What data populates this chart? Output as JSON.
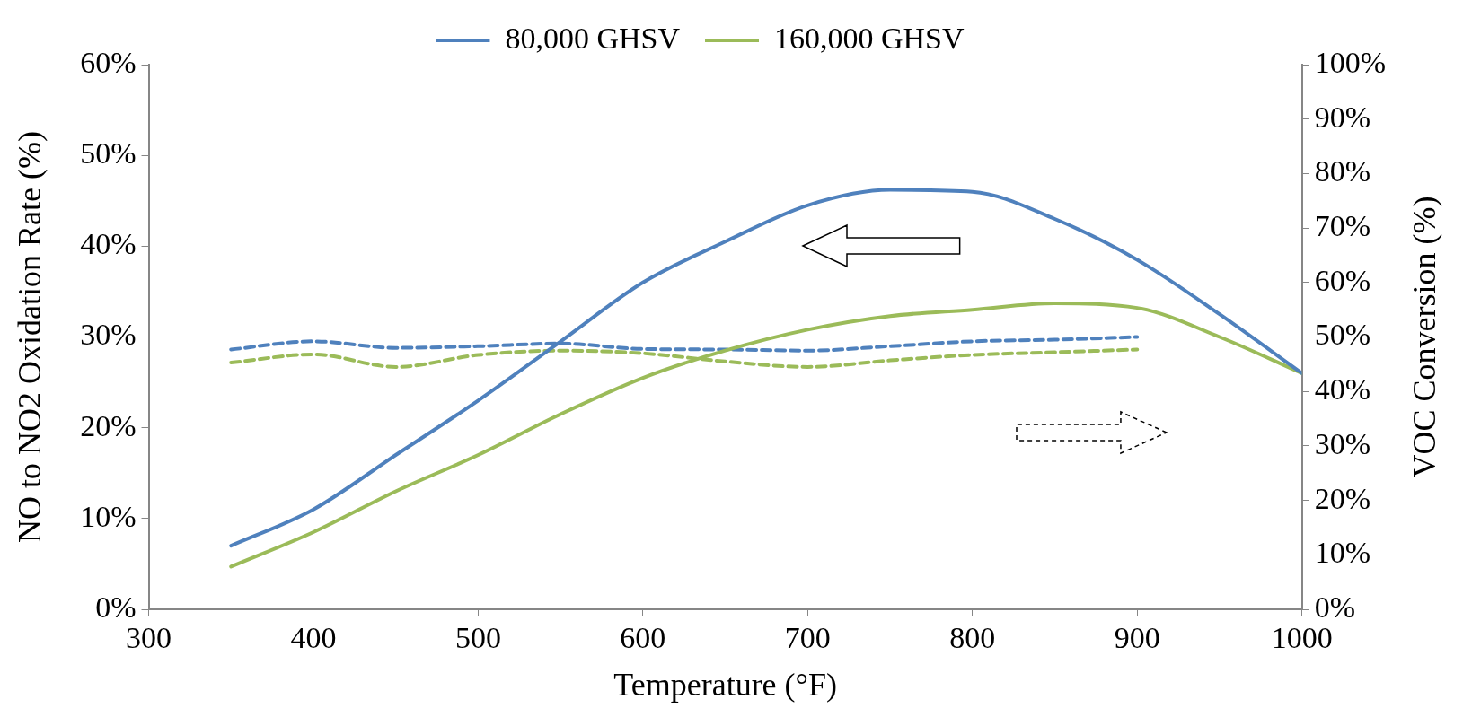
{
  "chart_data": {
    "type": "line",
    "xlabel": "Temperature (°F)",
    "ylabel": "NO to NO2 Oxidation Rate (%)",
    "y2label": "VOC Conversion (%)",
    "xlim": [
      300,
      1000
    ],
    "xticks": [
      300,
      400,
      500,
      600,
      700,
      800,
      900,
      1000
    ],
    "ylim": [
      0,
      60
    ],
    "yticks": [
      {
        "value": 0,
        "label": "0%"
      },
      {
        "value": 10,
        "label": "10%"
      },
      {
        "value": 20,
        "label": "20%"
      },
      {
        "value": 30,
        "label": "30%"
      },
      {
        "value": 40,
        "label": "40%"
      },
      {
        "value": 50,
        "label": "50%"
      },
      {
        "value": 60,
        "label": "60%"
      }
    ],
    "y2lim": [
      0,
      100
    ],
    "y2ticks": [
      {
        "value": 0,
        "label": "0%"
      },
      {
        "value": 10,
        "label": "10%"
      },
      {
        "value": 20,
        "label": "20%"
      },
      {
        "value": 30,
        "label": "30%"
      },
      {
        "value": 40,
        "label": "40%"
      },
      {
        "value": 50,
        "label": "50%"
      },
      {
        "value": 60,
        "label": "60%"
      },
      {
        "value": 70,
        "label": "70%"
      },
      {
        "value": 80,
        "label": "80%"
      },
      {
        "value": 90,
        "label": "90%"
      },
      {
        "value": 100,
        "label": "100%"
      }
    ],
    "grid": false,
    "legend": "top",
    "marker": "none",
    "series": [
      {
        "name": "80,000 GHSV",
        "color": "#4f81bd",
        "line_style": "solid",
        "x": [
          350,
          400,
          450,
          500,
          550,
          600,
          650,
          700,
          750,
          800,
          850,
          900,
          950,
          1000
        ],
        "values": [
          7,
          11,
          17,
          23,
          29.5,
          36,
          40.5,
          44.5,
          46.2,
          46,
          43,
          38.5,
          32.5,
          26
        ]
      },
      {
        "name": "160,000 GHSV",
        "color": "#9bbb59",
        "line_style": "solid",
        "x": [
          350,
          400,
          450,
          500,
          550,
          600,
          650,
          700,
          750,
          800,
          850,
          900,
          950,
          1000
        ],
        "values": [
          4.7,
          8.5,
          13,
          17,
          21.5,
          25.5,
          28.5,
          30.8,
          32.3,
          33,
          33.7,
          33.2,
          30,
          26
        ]
      },
      {
        "color": "#4f81bd",
        "line_style": "dashed",
        "axis": "y2",
        "x": [
          350,
          400,
          450,
          500,
          550,
          600,
          650,
          700,
          750,
          800,
          850,
          900
        ],
        "values": [
          47.7,
          49.2,
          48,
          48.3,
          48.8,
          47.8,
          47.7,
          47.5,
          48.3,
          49.2,
          49.5,
          50
        ]
      },
      {
        "color": "#9bbb59",
        "line_style": "dashed",
        "axis": "y2",
        "x": [
          350,
          400,
          450,
          500,
          550,
          600,
          650,
          700,
          750,
          800,
          850,
          900
        ],
        "values": [
          45.3,
          46.8,
          44.5,
          46.7,
          47.5,
          47,
          45.5,
          44.5,
          45.7,
          46.7,
          47.2,
          47.7
        ]
      }
    ]
  }
}
